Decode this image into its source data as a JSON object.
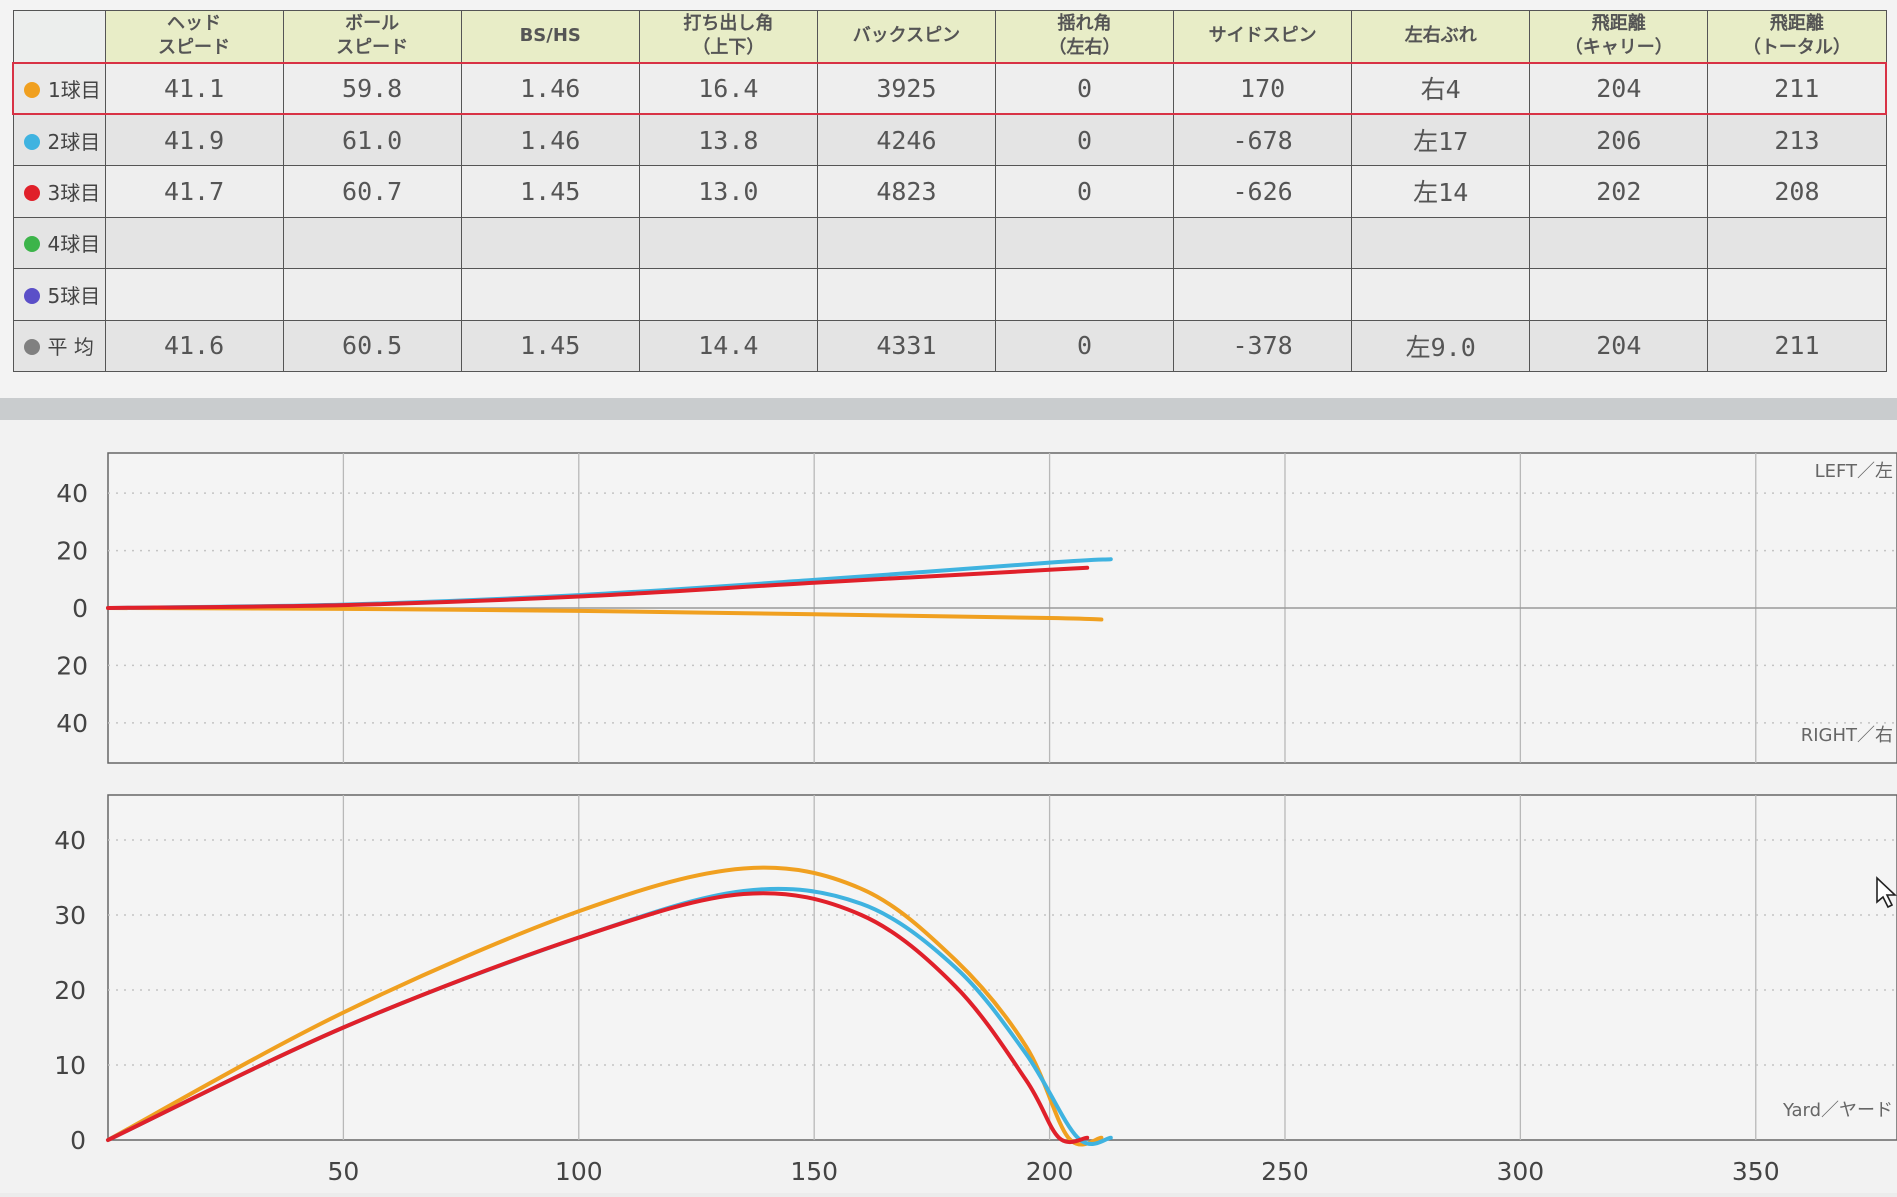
{
  "table": {
    "headers": [
      "",
      "ヘッド\nスピード",
      "ボール\nスピード",
      "BS/HS",
      "打ち出し角\n（上下）",
      "バックスピン",
      "揺れ角\n（左右）",
      "サイドスピン",
      "左右ぶれ",
      "飛距離\n（キャリー）",
      "飛距離\n（トータル）"
    ],
    "rows": [
      {
        "label": "1球目",
        "dot_color": "#f0a020",
        "selected": true,
        "cells": [
          "41.1",
          "59.8",
          "1.46",
          "16.4",
          "3925",
          "0",
          "170",
          "右4",
          "204",
          "211"
        ]
      },
      {
        "label": "2球目",
        "dot_color": "#3fb3e0",
        "selected": false,
        "cells": [
          "41.9",
          "61.0",
          "1.46",
          "13.8",
          "4246",
          "0",
          "-678",
          "左17",
          "206",
          "213"
        ]
      },
      {
        "label": "3球目",
        "dot_color": "#e0202a",
        "selected": false,
        "cells": [
          "41.7",
          "60.7",
          "1.45",
          "13.0",
          "4823",
          "0",
          "-626",
          "左14",
          "202",
          "208"
        ]
      },
      {
        "label": "4球目",
        "dot_color": "#3cb44a",
        "selected": false,
        "cells": [
          "",
          "",
          "",
          "",
          "",
          "",
          "",
          "",
          "",
          ""
        ]
      },
      {
        "label": "5球目",
        "dot_color": "#5b4fc8",
        "selected": false,
        "cells": [
          "",
          "",
          "",
          "",
          "",
          "",
          "",
          "",
          "",
          ""
        ]
      },
      {
        "label": "平 均",
        "dot_color": "#808080",
        "selected": false,
        "cells": [
          "41.6",
          "60.5",
          "1.45",
          "14.4",
          "4331",
          "0",
          "-378",
          "左9.0",
          "204",
          "211"
        ]
      }
    ]
  },
  "chart_data": [
    {
      "type": "line",
      "xlim": [
        0,
        380
      ],
      "ylim": [
        -54,
        54
      ],
      "x_gridlines": [
        50,
        100,
        150,
        200,
        250,
        300,
        350
      ],
      "y_tick_labels": [
        "40",
        "20",
        "0",
        "20",
        "40"
      ],
      "y_tick_values": [
        40,
        20,
        0,
        -20,
        -40
      ],
      "corner_labels": {
        "top_right": "LEFT／左",
        "bottom_right": "RIGHT／右"
      },
      "series": [
        {
          "color": "#f0a020",
          "x": [
            0,
            50,
            100,
            150,
            200,
            211
          ],
          "y": [
            0,
            -0.3,
            -1,
            -2.2,
            -3.5,
            -4
          ]
        },
        {
          "color": "#3fb3e0",
          "x": [
            0,
            50,
            100,
            150,
            200,
            213
          ],
          "y": [
            0,
            1.2,
            4.5,
            9.8,
            15.8,
            17
          ]
        },
        {
          "color": "#e0202a",
          "x": [
            0,
            50,
            100,
            150,
            200,
            208
          ],
          "y": [
            0,
            1,
            4,
            8.8,
            13.3,
            14
          ]
        }
      ]
    },
    {
      "type": "line",
      "xlim": [
        0,
        380
      ],
      "ylim": [
        0,
        46
      ],
      "xticks": [
        50,
        100,
        150,
        200,
        250,
        300,
        350
      ],
      "yticks": [
        0,
        10,
        20,
        30,
        40
      ],
      "corner_labels": {
        "bottom_right": "Yard／ヤード"
      },
      "series": [
        {
          "color": "#f0a020",
          "x": [
            0,
            50,
            100,
            135,
            160,
            180,
            195,
            204,
            211
          ],
          "y": [
            0,
            17,
            30.5,
            36.2,
            33.5,
            24,
            12.5,
            0.3,
            0.3
          ]
        },
        {
          "color": "#3fb3e0",
          "x": [
            0,
            50,
            100,
            135,
            160,
            180,
            195,
            206,
            213
          ],
          "y": [
            0,
            15,
            27,
            33.2,
            31.5,
            23,
            11.5,
            0.3,
            0.3
          ]
        },
        {
          "color": "#e0202a",
          "x": [
            0,
            50,
            100,
            135,
            160,
            180,
            195,
            202,
            208
          ],
          "y": [
            0,
            15,
            27,
            32.8,
            30,
            20.5,
            8,
            0.3,
            0.3
          ]
        }
      ]
    }
  ]
}
